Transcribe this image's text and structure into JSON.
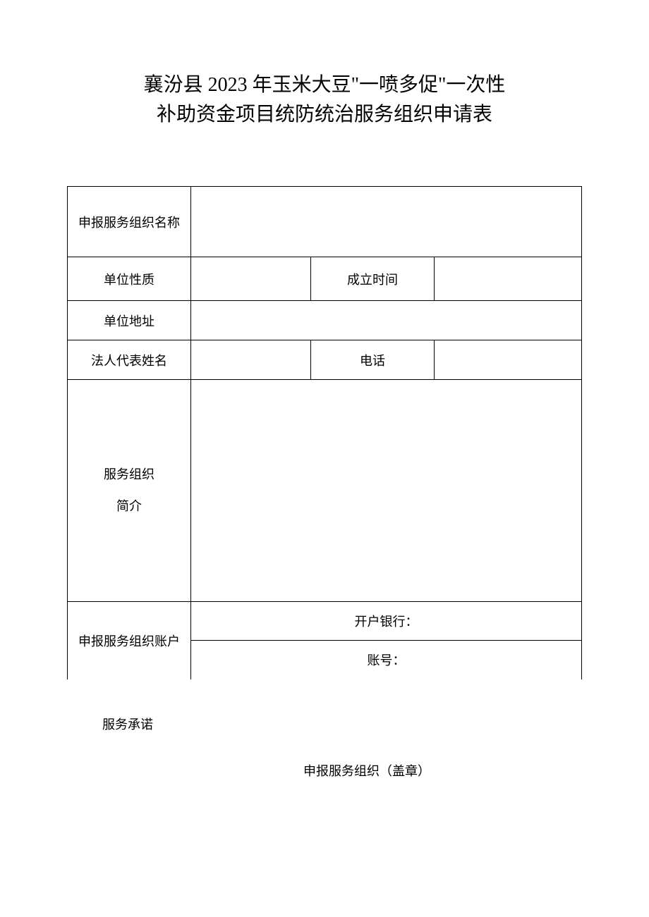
{
  "title_line1": "襄汾县 2023 年玉米大豆\"一喷多促\"一次性",
  "title_line2": "补助资金项目统防统治服务组织申请表",
  "labels": {
    "org_name": "申报服务组织名称",
    "unit_nature": "单位性质",
    "establish_time": "成立时间",
    "unit_address": "单位地址",
    "legal_rep": "法人代表姓名",
    "phone": "电话",
    "org_intro_line1": "服务组织",
    "org_intro_line2": "简介",
    "org_account": "申报服务组织账户",
    "bank": "开户银行：",
    "account_no": "账号：",
    "commitment": "服务承诺",
    "stamp": "申报服务组织（盖章）"
  },
  "values": {
    "org_name": "",
    "unit_nature": "",
    "establish_time": "",
    "unit_address": "",
    "legal_rep": "",
    "phone": "",
    "org_intro": "",
    "bank": "",
    "account_no": ""
  },
  "styles": {
    "background_color": "#ffffff",
    "text_color": "#000000",
    "border_color": "#000000",
    "title_fontsize": 28,
    "label_fontsize": 18,
    "font_family": "SimSun"
  }
}
